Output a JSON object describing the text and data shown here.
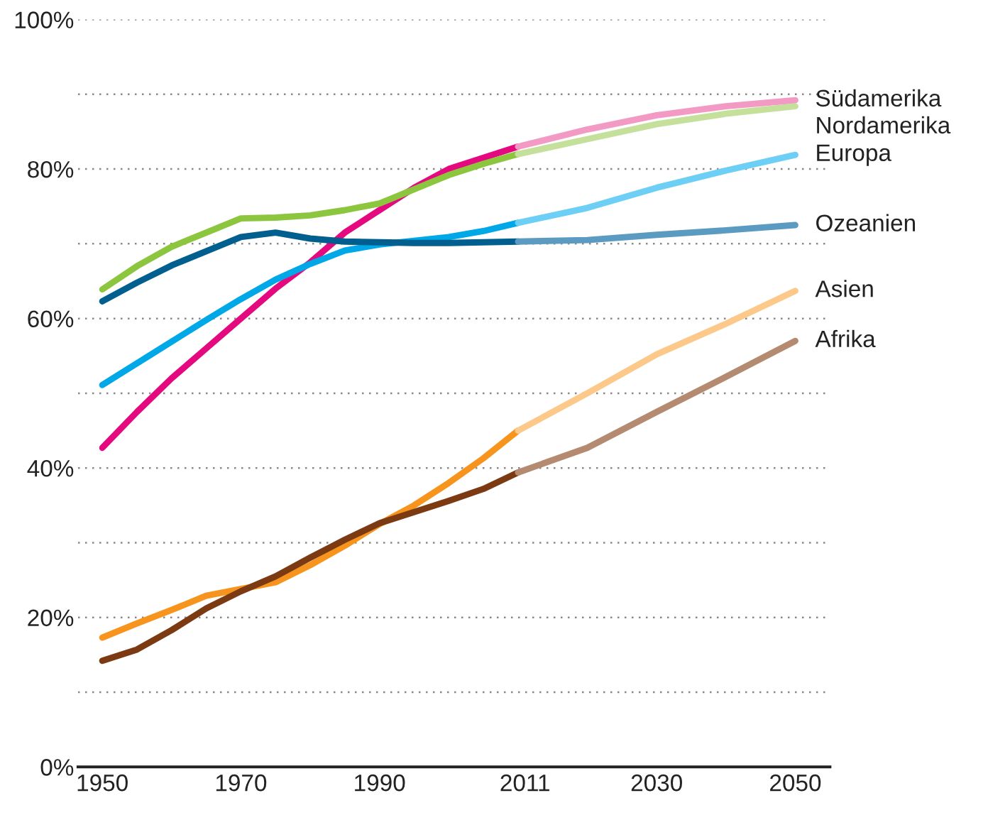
{
  "chart_data": {
    "type": "line",
    "xlim": [
      1946.5,
      2055
    ],
    "ylim": [
      0,
      100
    ],
    "xticks": [
      1950,
      1970,
      1990,
      2011,
      2030,
      2050
    ],
    "yticks": [
      {
        "value": 0,
        "label": "0%"
      },
      {
        "value": 10,
        "label": null
      },
      {
        "value": 20,
        "label": "20%"
      },
      {
        "value": 30,
        "label": null
      },
      {
        "value": 40,
        "label": "40%"
      },
      {
        "value": 50,
        "label": null
      },
      {
        "value": 60,
        "label": "60%"
      },
      {
        "value": 70,
        "label": null
      },
      {
        "value": 80,
        "label": "80%"
      },
      {
        "value": 90,
        "label": null
      },
      {
        "value": 100,
        "label": "100%"
      }
    ],
    "grid": "y",
    "line_style": "solid",
    "marker": "none",
    "series": [
      {
        "color": "#e5097f",
        "x": [
          1950,
          1955,
          1960,
          1965,
          1970,
          1975,
          1980,
          1985,
          1990,
          1995,
          2000,
          2005,
          2010
        ],
        "values": [
          42.7,
          47.5,
          52,
          56,
          60,
          64,
          67.5,
          71.5,
          74.5,
          77.5,
          80,
          81.5,
          83
        ]
      },
      {
        "color": "#8cc63f",
        "x": [
          1950,
          1955,
          1960,
          1965,
          1970,
          1975,
          1980,
          1985,
          1990,
          1995,
          2000,
          2005,
          2010
        ],
        "values": [
          63.9,
          67,
          69.6,
          71.5,
          73.4,
          73.5,
          73.8,
          74.5,
          75.4,
          77.3,
          79.2,
          80.7,
          82
        ]
      },
      {
        "color": "#00a8e8",
        "x": [
          1950,
          1955,
          1960,
          1965,
          1970,
          1975,
          1980,
          1985,
          1990,
          1995,
          2000,
          2005,
          2010
        ],
        "values": [
          51.1,
          54,
          56.9,
          59.8,
          62.6,
          65.2,
          67.3,
          69.1,
          69.9,
          70.4,
          70.9,
          71.7,
          72.8
        ]
      },
      {
        "color": "#005f8e",
        "x": [
          1950,
          1955,
          1960,
          1965,
          1970,
          1975,
          1980,
          1985,
          1990,
          1995,
          2000,
          2005,
          2010
        ],
        "values": [
          62.3,
          64.8,
          67.1,
          69,
          70.9,
          71.5,
          70.7,
          70.3,
          70.2,
          70.1,
          70.1,
          70.2,
          70.3
        ]
      },
      {
        "color": "#f7941d",
        "x": [
          1950,
          1955,
          1960,
          1965,
          1970,
          1975,
          1980,
          1985,
          1990,
          1995,
          2000,
          2005,
          2010
        ],
        "values": [
          17.3,
          19.2,
          21,
          22.9,
          23.8,
          24.7,
          27,
          29.6,
          32.5,
          35,
          38,
          41.3,
          45
        ]
      },
      {
        "color": "#7b3a12",
        "x": [
          1950,
          1955,
          1960,
          1965,
          1970,
          1975,
          1980,
          1985,
          1990,
          1995,
          2000,
          2005,
          2010
        ],
        "values": [
          14.2,
          15.7,
          18.3,
          21.2,
          23.5,
          25.5,
          28,
          30.4,
          32.6,
          34.1,
          35.6,
          37.2,
          39.4
        ]
      },
      {
        "name": "Südamerika",
        "color": "#f39ac4",
        "x": [
          2010,
          2020,
          2030,
          2040,
          2050
        ],
        "values": [
          83,
          85.3,
          87.2,
          88.4,
          89.2
        ]
      },
      {
        "name": "Nordamerika",
        "color": "#c5e09b",
        "x": [
          2010,
          2020,
          2030,
          2040,
          2050
        ],
        "values": [
          82,
          84,
          86,
          87.4,
          88.4
        ]
      },
      {
        "name": "Europa",
        "color": "#6dcff6",
        "x": [
          2010,
          2020,
          2030,
          2040,
          2050
        ],
        "values": [
          72.8,
          74.8,
          77.5,
          79.8,
          81.9
        ]
      },
      {
        "name": "Ozeanien",
        "color": "#5b9bc2",
        "x": [
          2010,
          2020,
          2030,
          2040,
          2050
        ],
        "values": [
          70.3,
          70.5,
          71.2,
          71.8,
          72.5
        ]
      },
      {
        "name": "Asien",
        "color": "#fdc98a",
        "x": [
          2010,
          2020,
          2030,
          2040,
          2050
        ],
        "values": [
          45,
          50,
          55.2,
          59.3,
          63.7
        ]
      },
      {
        "name": "Afrika",
        "color": "#b48a70",
        "x": [
          2010,
          2020,
          2030,
          2040,
          2050
        ],
        "values": [
          39.4,
          42.7,
          47.5,
          52.2,
          57
        ]
      }
    ]
  }
}
